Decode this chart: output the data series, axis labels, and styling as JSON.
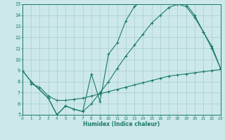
{
  "line1_x": [
    0,
    1,
    3,
    4,
    5,
    6,
    7,
    8,
    9,
    10,
    11,
    12,
    13,
    14,
    15,
    16,
    17,
    18,
    19,
    20,
    21,
    22,
    23
  ],
  "line1_y": [
    9.0,
    8.0,
    6.5,
    5.0,
    5.8,
    5.5,
    5.3,
    8.7,
    6.2,
    10.5,
    11.5,
    13.5,
    14.8,
    15.3,
    15.5,
    15.5,
    15.4,
    15.0,
    15.0,
    14.0,
    12.5,
    11.0,
    9.2
  ],
  "line2_x": [
    0,
    1,
    3,
    4,
    5,
    6,
    7,
    8,
    9,
    10,
    11,
    12,
    13,
    14,
    15,
    16,
    17,
    18,
    19,
    20,
    21,
    22,
    23
  ],
  "line2_y": [
    9.0,
    8.0,
    6.5,
    5.0,
    5.8,
    5.5,
    5.3,
    6.0,
    7.0,
    8.0,
    9.2,
    10.3,
    11.3,
    12.3,
    13.3,
    14.0,
    14.7,
    15.0,
    14.8,
    13.8,
    12.5,
    11.2,
    9.2
  ],
  "line3_x": [
    1,
    2,
    3,
    4,
    5,
    6,
    7,
    8,
    9,
    10,
    11,
    12,
    13,
    14,
    15,
    16,
    17,
    18,
    19,
    20,
    21,
    22,
    23
  ],
  "line3_y": [
    7.8,
    7.5,
    6.7,
    6.3,
    6.3,
    6.4,
    6.5,
    6.7,
    6.9,
    7.1,
    7.3,
    7.5,
    7.7,
    7.9,
    8.1,
    8.3,
    8.5,
    8.6,
    8.7,
    8.8,
    8.9,
    9.0,
    9.1
  ],
  "color": "#1a7a6a",
  "bg_color": "#cce8e8",
  "grid_color": "#aacece",
  "xlabel": "Humidex (Indice chaleur)",
  "xlim": [
    0,
    23
  ],
  "ylim": [
    5,
    15
  ],
  "yticks": [
    5,
    6,
    7,
    8,
    9,
    10,
    11,
    12,
    13,
    14,
    15
  ],
  "xticks": [
    0,
    1,
    2,
    3,
    4,
    5,
    6,
    7,
    8,
    9,
    10,
    11,
    12,
    13,
    14,
    15,
    16,
    17,
    18,
    19,
    20,
    21,
    22,
    23
  ]
}
